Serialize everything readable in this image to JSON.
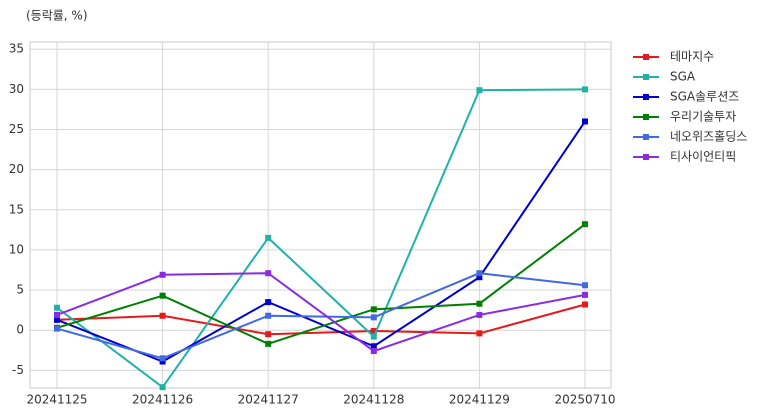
{
  "chart_data": {
    "type": "line",
    "y_label": "(등락률, %)",
    "categories": [
      "20241125",
      "20241126",
      "20241127",
      "20241128",
      "20241129",
      "20250710"
    ],
    "series": [
      {
        "name": "테마지수",
        "color": "#e41a1c",
        "values": [
          1.3,
          1.8,
          -0.5,
          -0.1,
          -0.4,
          3.2
        ]
      },
      {
        "name": "SGA",
        "color": "#20b2aa",
        "values": [
          2.8,
          -7.1,
          11.5,
          -0.8,
          29.9,
          30.0
        ]
      },
      {
        "name": "SGA솔루션즈",
        "color": "#0000cd",
        "values": [
          1.3,
          -3.9,
          3.5,
          -2.0,
          6.6,
          26.0
        ]
      },
      {
        "name": "우리기술투자",
        "color": "#008000",
        "values": [
          0.3,
          4.3,
          -1.7,
          2.6,
          3.3,
          13.2
        ]
      },
      {
        "name": "네오위즈홀딩스",
        "color": "#4169e1",
        "values": [
          0.2,
          -3.5,
          1.8,
          1.6,
          7.1,
          5.6
        ]
      },
      {
        "name": "티사이언티픽",
        "color": "#8a2be2",
        "values": [
          1.9,
          6.9,
          7.1,
          -2.6,
          1.9,
          4.4
        ]
      }
    ],
    "ylim": [
      -7.2,
      35.9
    ],
    "yticks": [
      -5,
      0,
      5,
      10,
      15,
      20,
      25,
      30,
      35
    ],
    "grid": true
  }
}
